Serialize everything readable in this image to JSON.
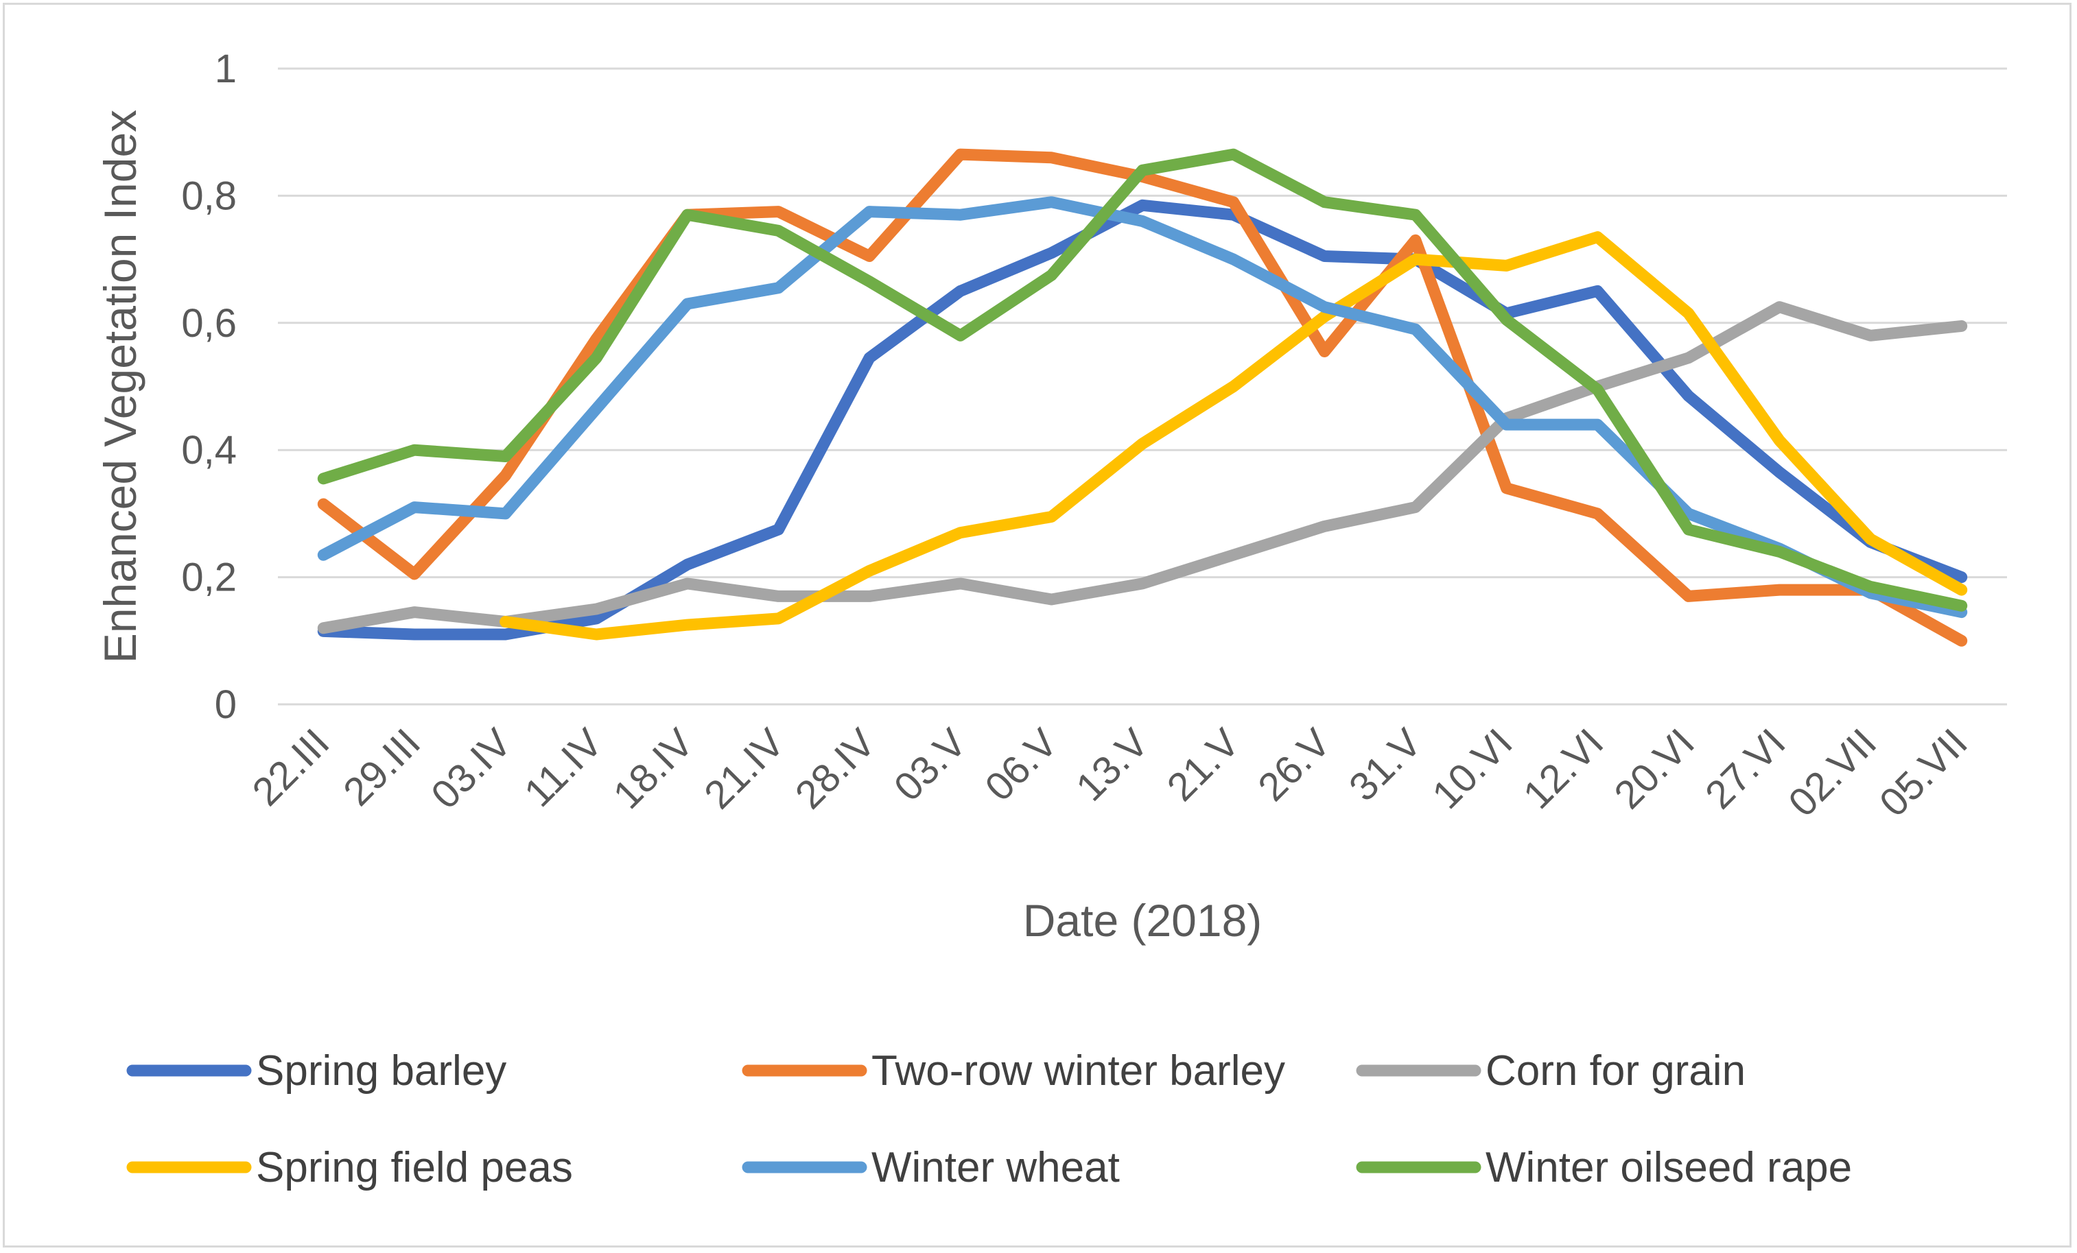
{
  "chart_data": {
    "type": "line",
    "title": "",
    "xlabel": "Date (2018)",
    "ylabel": "Enhanced Vegetation Index",
    "ylim": [
      0,
      1
    ],
    "yticks": [
      0,
      0.2,
      0.4,
      0.6,
      0.8,
      1
    ],
    "ytick_labels": [
      "0",
      "0,2",
      "0,4",
      "0,6",
      "0,8",
      "1"
    ],
    "grid": true,
    "legend_position": "bottom",
    "categories": [
      "22.III",
      "29.III",
      "03.IV",
      "11.IV",
      "18.IV",
      "21.IV",
      "28.IV",
      "03.V",
      "06.V",
      "13.V",
      "21.V",
      "26.V",
      "31.V",
      "10.VI",
      "12.VI",
      "20.VI",
      "27.VI",
      "02.VII",
      "05.VII"
    ],
    "series": [
      {
        "name": "Spring barley",
        "color": "#4472c4",
        "values": [
          0.115,
          0.11,
          0.11,
          0.135,
          0.22,
          0.275,
          0.545,
          0.65,
          0.71,
          0.785,
          0.77,
          0.705,
          0.7,
          0.615,
          0.65,
          0.485,
          0.365,
          0.255,
          0.2
        ]
      },
      {
        "name": "Two-row winter barley",
        "color": "#ed7d31",
        "values": [
          0.315,
          0.205,
          0.36,
          0.575,
          0.77,
          0.775,
          0.705,
          0.865,
          0.86,
          0.83,
          0.79,
          0.555,
          0.73,
          0.34,
          0.3,
          0.17,
          0.18,
          0.18,
          0.1
        ]
      },
      {
        "name": "Corn for grain",
        "color": "#a5a5a5",
        "values": [
          0.12,
          0.145,
          0.13,
          0.15,
          0.19,
          0.17,
          0.17,
          0.19,
          0.165,
          0.19,
          0.235,
          0.28,
          0.31,
          0.45,
          0.5,
          0.545,
          0.625,
          0.58,
          0.595
        ]
      },
      {
        "name": "Spring field peas",
        "color": "#ffc000",
        "values": [
          null,
          null,
          0.13,
          0.11,
          0.125,
          0.135,
          0.21,
          0.27,
          0.295,
          0.41,
          0.5,
          0.61,
          0.7,
          0.69,
          0.735,
          0.615,
          0.415,
          0.26,
          0.18
        ]
      },
      {
        "name": "Winter wheat",
        "color": "#5b9bd5",
        "values": [
          0.235,
          0.31,
          0.3,
          0.465,
          0.63,
          0.655,
          0.775,
          0.77,
          0.79,
          0.76,
          0.7,
          0.625,
          0.59,
          0.44,
          0.44,
          0.3,
          0.245,
          0.175,
          0.145
        ]
      },
      {
        "name": "Winter oilseed rape",
        "color": "#70ad47",
        "values": [
          0.355,
          0.4,
          0.39,
          0.545,
          0.77,
          0.745,
          0.665,
          0.58,
          0.675,
          0.84,
          0.865,
          0.79,
          0.77,
          0.605,
          0.495,
          0.275,
          0.24,
          0.185,
          0.155
        ]
      }
    ]
  }
}
